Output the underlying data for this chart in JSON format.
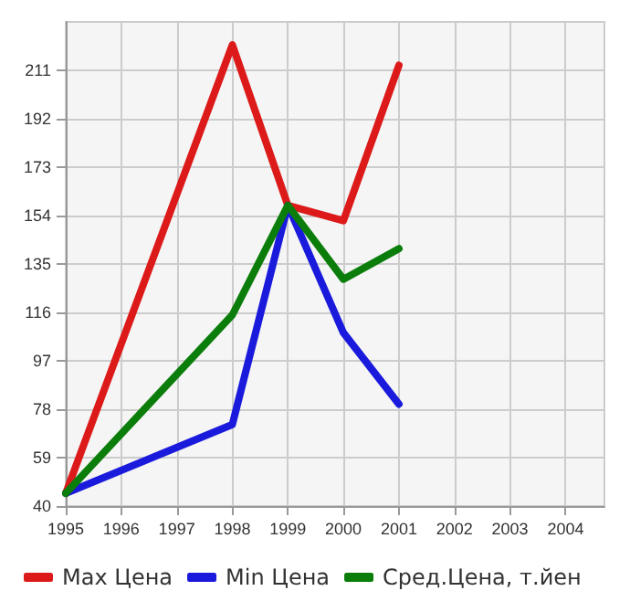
{
  "chart_data": {
    "type": "line",
    "x": [
      1995,
      1998,
      1999,
      2000,
      2001
    ],
    "xlim": [
      1995,
      2004.7
    ],
    "xticks": [
      1995,
      1996,
      1997,
      1998,
      1999,
      2000,
      2001,
      2002,
      2003,
      2004
    ],
    "ylim": [
      40,
      230
    ],
    "yticks": [
      40,
      59,
      78,
      97,
      116,
      135,
      154,
      173,
      192,
      211
    ],
    "series": [
      {
        "name": "Max Цена",
        "color": "#dd1a1a",
        "values": [
          45,
          221,
          158,
          152,
          213
        ]
      },
      {
        "name": "Min Цена",
        "color": "#1a1adc",
        "values": [
          45,
          72,
          158,
          108,
          80
        ]
      },
      {
        "name": "Сред.Цена, т.йен",
        "color": "#0a7d0a",
        "values": [
          45,
          115,
          158,
          129,
          141
        ]
      }
    ],
    "grid": true,
    "legend": "bottom",
    "marker": "none",
    "line_style": "solid"
  }
}
